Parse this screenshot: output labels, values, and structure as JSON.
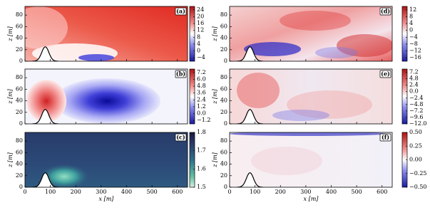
{
  "x_axis": {
    "label": "x [m]",
    "lim": [
      0,
      640
    ],
    "ticks": [
      0,
      100,
      200,
      300,
      400,
      500,
      600
    ]
  },
  "y_axis": {
    "label": "z [m]",
    "lim": [
      0,
      95
    ],
    "ticks": [
      0,
      20,
      40,
      60,
      80
    ]
  },
  "panels": [
    {
      "label": "(a)",
      "colorbar": {
        "lim": [
          -6,
          26
        ],
        "ticks": [
          24,
          20,
          16,
          12,
          8,
          4,
          0,
          {
            "value": -4,
            "label": "−4"
          }
        ]
      }
    },
    {
      "label": "(b)",
      "colorbar": {
        "lim": [
          -1.8,
          7.8
        ],
        "ticks": [
          7.2,
          {
            "value": 6,
            "label": "6.0"
          },
          4.8,
          3.6,
          2.4,
          1.2,
          {
            "value": 0,
            "label": "0.0"
          },
          {
            "value": -1.2,
            "label": "−1.2"
          }
        ]
      }
    },
    {
      "label": "(c)",
      "colorbar": {
        "lim": [
          1.5,
          1.8
        ],
        "ticks": [
          1.8,
          1.7,
          1.6,
          1.5
        ]
      }
    },
    {
      "label": "(d)",
      "colorbar": {
        "lim": [
          -18,
          14
        ],
        "ticks": [
          12,
          8,
          4,
          0,
          {
            "value": -4,
            "label": "−4"
          },
          {
            "value": -8,
            "label": "−8"
          },
          {
            "value": -12,
            "label": "−12"
          },
          {
            "value": -16,
            "label": "−16"
          }
        ]
      }
    },
    {
      "label": "(e)",
      "colorbar": {
        "lim": [
          -12,
          8.4
        ],
        "ticks": [
          7.2,
          4.8,
          2.4,
          {
            "value": 0,
            "label": "0.0"
          },
          {
            "value": -2.4,
            "label": "−2.4"
          },
          {
            "value": -4.8,
            "label": "−4.8"
          },
          {
            "value": -7.2,
            "label": "−7.2"
          },
          {
            "value": -9.6,
            "label": "−9.6"
          },
          {
            "value": -12,
            "label": "−12.0"
          }
        ]
      }
    },
    {
      "label": "(f)",
      "colorbar": {
        "lim": [
          -0.5,
          0.5
        ],
        "ticks": [
          {
            "value": 0.5,
            "label": "0.50"
          },
          0.25,
          {
            "value": 0,
            "label": "0.00"
          },
          {
            "value": -0.25,
            "label": "−0.25"
          },
          {
            "value": -0.5,
            "label": "−0.50"
          }
        ]
      }
    }
  ]
}
